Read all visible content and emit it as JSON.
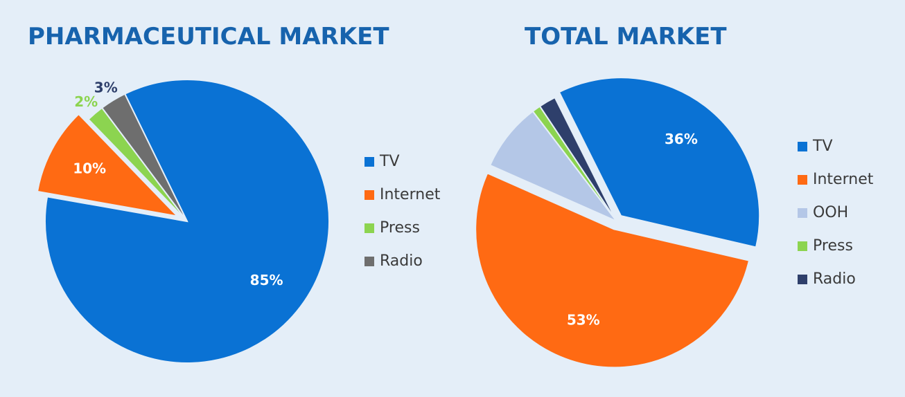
{
  "chart_data": [
    {
      "type": "pie",
      "title": "PHARMACEUTICAL MARKET",
      "categories": [
        "TV",
        "Internet",
        "Press",
        "Radio"
      ],
      "values": [
        85,
        10,
        2,
        3
      ],
      "value_labels": [
        "85%",
        "10%",
        "2%",
        "3%"
      ],
      "colors": [
        "#0a72d4",
        "#ff6a13",
        "#8cd450",
        "#6e6e6e"
      ],
      "legend": "right"
    },
    {
      "type": "pie",
      "title": "TOTAL MARKET",
      "categories": [
        "TV",
        "Internet",
        "OOH",
        "Press",
        "Radio"
      ],
      "values": [
        36,
        53,
        8,
        1,
        2
      ],
      "value_labels": [
        "36%",
        "53%",
        null,
        null,
        null
      ],
      "colors": [
        "#0a72d4",
        "#ff6a13",
        "#b4c7e7",
        "#8cd450",
        "#2e3f6b"
      ],
      "legend": "right"
    }
  ]
}
